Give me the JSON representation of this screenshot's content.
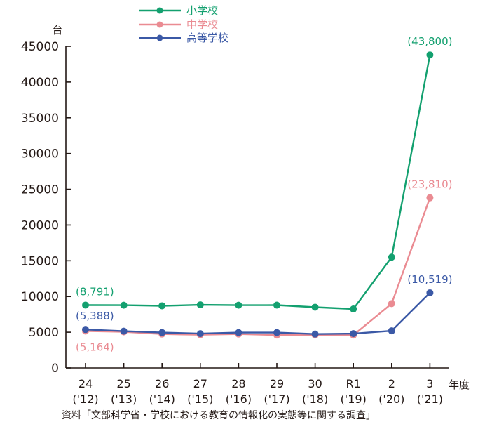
{
  "chart_data": {
    "type": "line",
    "ylabel": "台",
    "xlabel": "年度",
    "source": "資料「文部科学省・学校における教育の情報化の実態等に関する調査」",
    "ylim": [
      0,
      45000
    ],
    "yticks": [
      "0",
      "5000",
      "10000",
      "15000",
      "20000",
      "25000",
      "30000",
      "35000",
      "40000",
      "45000"
    ],
    "categories": [
      {
        "top": "24",
        "bottom": "('12)"
      },
      {
        "top": "25",
        "bottom": "('13)"
      },
      {
        "top": "26",
        "bottom": "('14)"
      },
      {
        "top": "27",
        "bottom": "('15)"
      },
      {
        "top": "28",
        "bottom": "('16)"
      },
      {
        "top": "29",
        "bottom": "('17)"
      },
      {
        "top": "30",
        "bottom": "('18)"
      },
      {
        "top": "R1",
        "bottom": "('19)"
      },
      {
        "top": "2",
        "bottom": "('20)"
      },
      {
        "top": "3",
        "bottom": "('21)"
      }
    ],
    "legend_position": "top",
    "series": [
      {
        "name": "小学校",
        "color": "#13a06f",
        "values": [
          8791,
          8780,
          8700,
          8830,
          8780,
          8790,
          8500,
          8250,
          15500,
          43800
        ],
        "labels": [
          {
            "index": 0,
            "text": "(8,791)",
            "pos": "above"
          },
          {
            "index": 9,
            "text": "(43,800)",
            "pos": "above"
          }
        ]
      },
      {
        "name": "中学校",
        "color": "#ea8b92",
        "values": [
          5164,
          5050,
          4750,
          4650,
          4750,
          4600,
          4600,
          4600,
          9000,
          23810
        ],
        "labels": [
          {
            "index": 0,
            "text": "(5,164)",
            "pos": "below"
          },
          {
            "index": 9,
            "text": "(23,810)",
            "pos": "above"
          }
        ]
      },
      {
        "name": "高等学校",
        "color": "#3b59a6",
        "values": [
          5388,
          5150,
          4950,
          4800,
          4950,
          4950,
          4750,
          4800,
          5200,
          10519
        ],
        "labels": [
          {
            "index": 0,
            "text": "(5,388)",
            "pos": "above"
          },
          {
            "index": 9,
            "text": "(10,519)",
            "pos": "above"
          }
        ]
      }
    ]
  }
}
